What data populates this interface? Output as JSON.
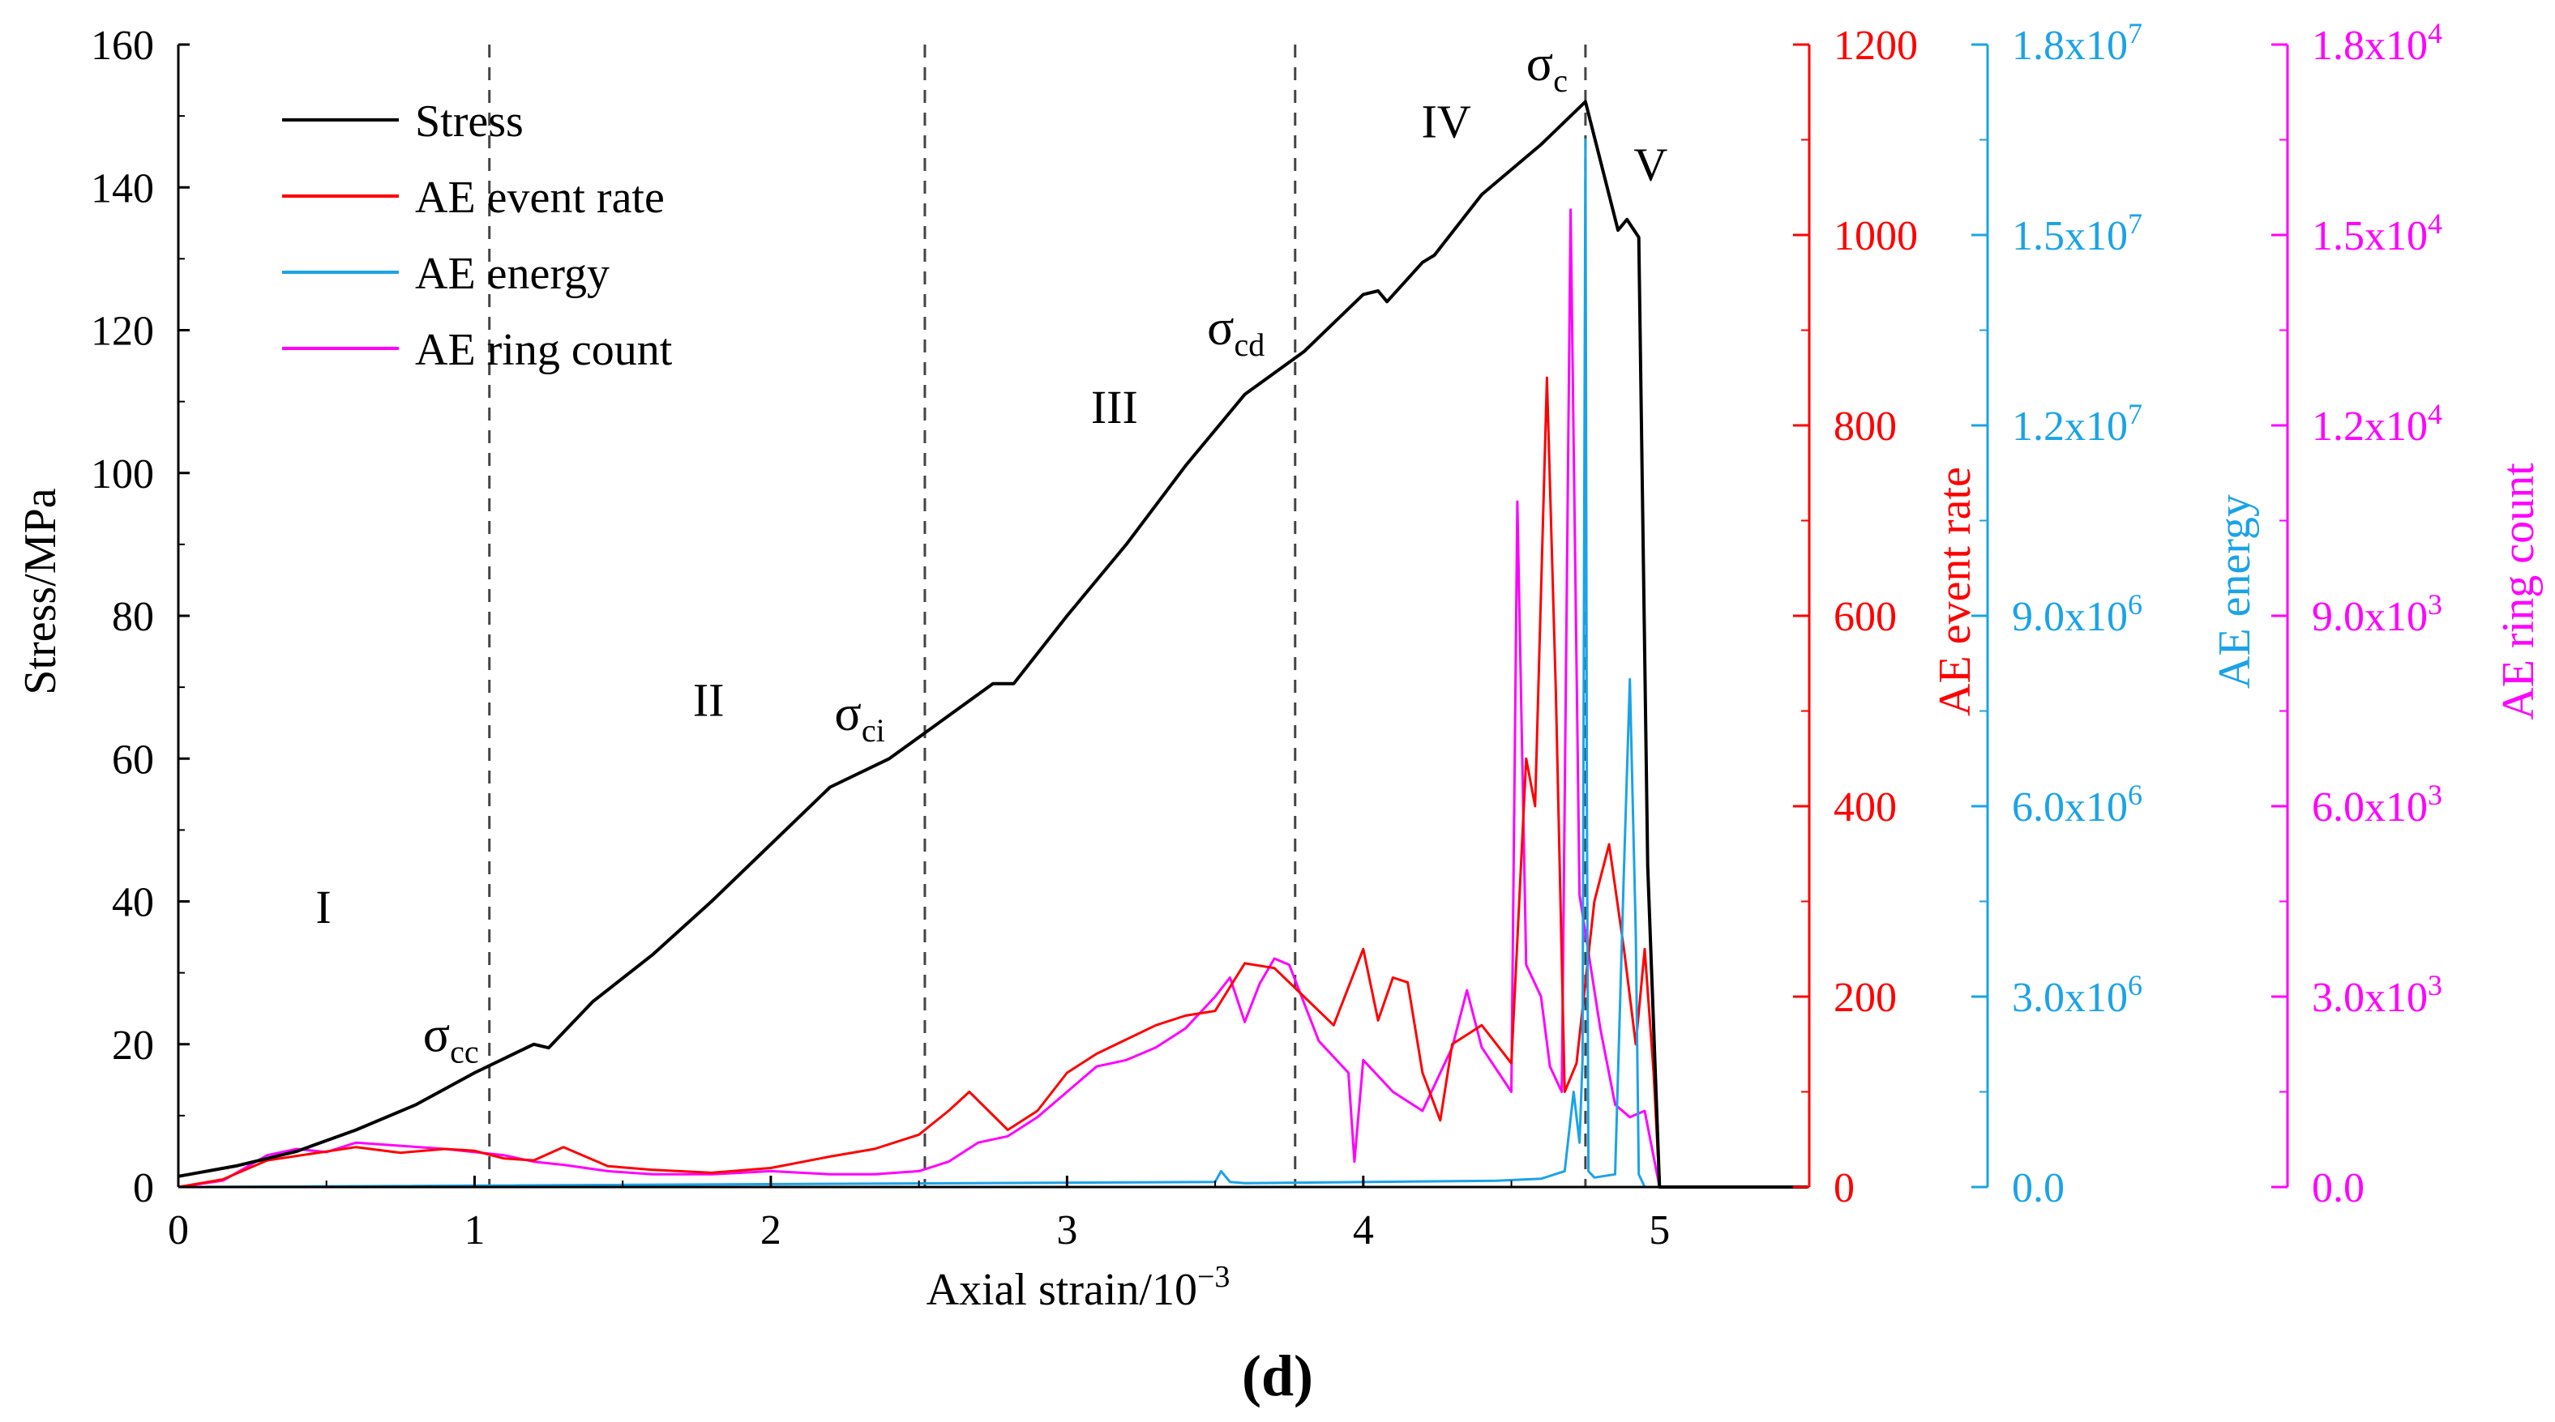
{
  "panel_label": "(d)",
  "chart_data": {
    "type": "line",
    "title": "",
    "xlabel": "Axial strain/10",
    "xlabel_sup": "−3",
    "xlim": [
      0,
      5.5
    ],
    "xticks": [
      "0",
      "1",
      "2",
      "3",
      "4",
      "5"
    ],
    "axes": {
      "stress": {
        "label": "Stress/MPa",
        "ylim": [
          0,
          160
        ],
        "ticks": [
          "0",
          "20",
          "40",
          "60",
          "80",
          "100",
          "120",
          "140",
          "160"
        ],
        "color": "#000000"
      },
      "event_rate": {
        "label": "AE event rate",
        "ylim": [
          0,
          1200
        ],
        "ticks": [
          "0",
          "200",
          "400",
          "600",
          "800",
          "1000",
          "1200"
        ],
        "color": "#ff0000"
      },
      "energy": {
        "label": "AE energy",
        "ylim": [
          0,
          18000000
        ],
        "tick_mantissas": [
          "0.0",
          "3.0x10",
          "6.0x10",
          "9.0x10",
          "1.2x10",
          "1.5x10",
          "1.8x10"
        ],
        "tick_exponents": [
          "",
          "6",
          "6",
          "6",
          "7",
          "7",
          "7"
        ],
        "color": "#1aa3e8"
      },
      "ring_count": {
        "label": "AE ring count",
        "ylim": [
          0,
          18000
        ],
        "tick_mantissas": [
          "0.0",
          "3.0x10",
          "6.0x10",
          "9.0x10",
          "1.2x10",
          "1.5x10",
          "1.8x10"
        ],
        "tick_exponents": [
          "",
          "3",
          "3",
          "3",
          "4",
          "4",
          "4"
        ],
        "color": "#ff00ff"
      }
    },
    "legend": [
      {
        "label": "Stress",
        "color": "#000000"
      },
      {
        "label": "AE event rate",
        "color": "#ff0000"
      },
      {
        "label": "AE energy",
        "color": "#1aa3e8"
      },
      {
        "label": "AE ring count",
        "color": "#ff00ff"
      }
    ],
    "legend_position": "top-left",
    "thresholds": [
      {
        "strain": 1.05,
        "sigma": "σ",
        "sub": "cc",
        "label_strain": 0.92,
        "label_stress": 19
      },
      {
        "strain": 2.52,
        "sigma": "σ",
        "sub": "ci",
        "label_strain": 2.3,
        "label_stress": 64
      },
      {
        "strain": 3.77,
        "sigma": "σ",
        "sub": "cd",
        "label_strain": 3.57,
        "label_stress": 118
      },
      {
        "strain": 4.75,
        "sigma": "σ",
        "sub": "c",
        "label_strain": 4.62,
        "label_stress": 155
      }
    ],
    "stages": [
      {
        "label": "I",
        "strain": 0.49,
        "stress": 37
      },
      {
        "label": "II",
        "strain": 1.79,
        "stress": 66
      },
      {
        "label": "III",
        "strain": 3.16,
        "stress": 107
      },
      {
        "label": "IV",
        "strain": 4.28,
        "stress": 147
      },
      {
        "label": "V",
        "strain": 4.97,
        "stress": 141
      }
    ],
    "series": [
      {
        "name": "Stress",
        "axis": "stress",
        "x": [
          0,
          0.2,
          0.4,
          0.6,
          0.8,
          1.0,
          1.2,
          1.25,
          1.4,
          1.6,
          1.8,
          2.0,
          2.2,
          2.4,
          2.6,
          2.75,
          2.82,
          3.0,
          3.2,
          3.4,
          3.6,
          3.8,
          4.0,
          4.05,
          4.08,
          4.2,
          4.24,
          4.4,
          4.6,
          4.75,
          4.86,
          4.89,
          4.93,
          4.96,
          5.0,
          5.5
        ],
        "y": [
          1.5,
          3,
          5,
          8,
          11.5,
          16,
          20,
          19.5,
          26,
          32.5,
          40,
          48,
          56,
          60,
          66,
          70.5,
          70.5,
          80,
          90,
          101,
          111,
          117,
          125,
          125.5,
          124,
          129.5,
          130.5,
          139,
          146,
          152,
          134,
          135.5,
          133,
          45,
          0,
          0
        ]
      },
      {
        "name": "AE event rate",
        "axis": "event_rate",
        "x": [
          0,
          0.15,
          0.3,
          0.45,
          0.6,
          0.75,
          0.9,
          1.0,
          1.1,
          1.2,
          1.3,
          1.45,
          1.6,
          1.8,
          2.0,
          2.2,
          2.35,
          2.5,
          2.6,
          2.67,
          2.8,
          2.9,
          3.0,
          3.1,
          3.2,
          3.3,
          3.4,
          3.5,
          3.6,
          3.7,
          3.8,
          3.9,
          4.0,
          4.05,
          4.1,
          4.15,
          4.2,
          4.26,
          4.3,
          4.4,
          4.5,
          4.55,
          4.58,
          4.62,
          4.65,
          4.68,
          4.72,
          4.78,
          4.83,
          4.88,
          4.92,
          4.95,
          4.98,
          5.0,
          5.5
        ],
        "y": [
          0,
          8,
          28,
          35,
          42,
          36,
          40,
          38,
          30,
          28,
          42,
          22,
          18,
          15,
          20,
          32,
          40,
          55,
          80,
          100,
          60,
          80,
          120,
          140,
          155,
          170,
          180,
          185,
          235,
          230,
          200,
          170,
          250,
          175,
          220,
          215,
          120,
          70,
          150,
          170,
          130,
          450,
          400,
          850,
          520,
          100,
          130,
          300,
          360,
          250,
          150,
          250,
          120,
          0,
          0
        ]
      },
      {
        "name": "AE energy",
        "axis": "energy",
        "x": [
          0,
          3.5,
          3.52,
          3.55,
          3.6,
          4.45,
          4.6,
          4.68,
          4.71,
          4.73,
          4.74,
          4.75,
          4.755,
          4.76,
          4.78,
          4.85,
          4.88,
          4.9,
          4.92,
          4.93,
          4.95,
          5.5
        ],
        "y": [
          0,
          80000,
          250000,
          80000,
          60000,
          100000,
          130000,
          250000,
          1500000,
          700000,
          2000000,
          16500000,
          6000000,
          250000,
          150000,
          200000,
          5000000,
          8000000,
          4000000,
          200000,
          0,
          0
        ]
      },
      {
        "name": "AE ring count",
        "axis": "ring_count",
        "x": [
          0,
          0.15,
          0.3,
          0.4,
          0.5,
          0.6,
          0.75,
          0.9,
          1.0,
          1.1,
          1.2,
          1.3,
          1.45,
          1.6,
          1.8,
          2.0,
          2.2,
          2.35,
          2.5,
          2.6,
          2.7,
          2.8,
          2.9,
          3.0,
          3.1,
          3.2,
          3.3,
          3.4,
          3.5,
          3.55,
          3.6,
          3.65,
          3.7,
          3.75,
          3.85,
          3.95,
          3.97,
          4.0,
          4.1,
          4.2,
          4.3,
          4.35,
          4.4,
          4.5,
          4.52,
          4.55,
          4.6,
          4.63,
          4.67,
          4.7,
          4.73,
          4.8,
          4.85,
          4.9,
          4.95,
          5.0,
          5.5
        ],
        "y": [
          0,
          100,
          500,
          600,
          550,
          700,
          650,
          600,
          550,
          500,
          400,
          350,
          250,
          200,
          200,
          250,
          200,
          200,
          250,
          400,
          700,
          800,
          1100,
          1500,
          1900,
          2000,
          2200,
          2500,
          3000,
          3300,
          2600,
          3200,
          3600,
          3500,
          2300,
          1800,
          400,
          2000,
          1500,
          1200,
          2200,
          3100,
          2200,
          1500,
          10800,
          3500,
          3000,
          1900,
          1500,
          15400,
          4600,
          2500,
          1300,
          1100,
          1200,
          0,
          0
        ]
      }
    ]
  }
}
